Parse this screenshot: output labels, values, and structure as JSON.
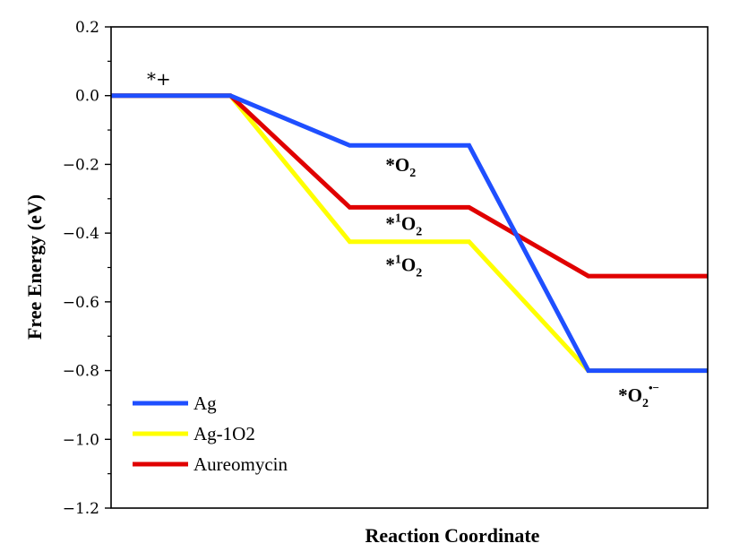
{
  "chart_data": {
    "type": "line",
    "title": "",
    "xlabel": "Reaction Coordinate",
    "ylabel": "Free Energy (eV)",
    "ylim": [
      -1.2,
      0.2
    ],
    "yticks": [
      "0.2",
      "0.0",
      "−0.2",
      "−0.4",
      "−0.6",
      "−0.8",
      "−1.0",
      "−1.2"
    ],
    "ytick_values": [
      0.2,
      0.0,
      -0.2,
      -0.4,
      -0.6,
      -0.8,
      -1.0,
      -1.2
    ],
    "xlim": [
      0,
      5
    ],
    "grid": false,
    "legend_position": "bottom-left",
    "series": [
      {
        "name": "Ag",
        "color": "#1f4fff",
        "x": [
          0,
          1,
          2,
          3,
          4,
          5
        ],
        "y": [
          0.0,
          0.0,
          -0.145,
          -0.145,
          -0.8,
          -0.8
        ]
      },
      {
        "name": "Ag-1O2",
        "color": "#ffff00",
        "x": [
          0,
          1,
          2,
          3,
          4,
          5
        ],
        "y": [
          0.0,
          0.0,
          -0.425,
          -0.425,
          -0.8,
          -0.8
        ]
      },
      {
        "name": "Aureomycin",
        "color": "#e00000",
        "x": [
          0,
          1,
          2,
          3,
          4,
          5
        ],
        "y": [
          0.0,
          0.0,
          -0.325,
          -0.325,
          -0.525,
          -0.525
        ]
      }
    ],
    "annotations": [
      {
        "id": "start",
        "prefix": "*+",
        "main": "",
        "sup": "",
        "sub": "",
        "x": 0.3,
        "y": 0.03
      },
      {
        "id": "ag-o2",
        "prefix": "",
        "main": "*O",
        "sup": "",
        "sub": "2",
        "x": 2.3,
        "y": -0.22
      },
      {
        "id": "aur-1o2",
        "prefix": "",
        "main": "*",
        "sup": "1",
        "sub": "2",
        "after_sup": "O",
        "x": 2.3,
        "y": -0.39
      },
      {
        "id": "ag1o2-1o2",
        "prefix": "",
        "main": "*",
        "sup": "1",
        "sub": "2",
        "after_sup": "O",
        "x": 2.3,
        "y": -0.51
      },
      {
        "id": "superoxide",
        "prefix": "",
        "main": "*O",
        "sup": "•−",
        "sub": "2",
        "x": 4.25,
        "y": -0.89
      }
    ]
  }
}
